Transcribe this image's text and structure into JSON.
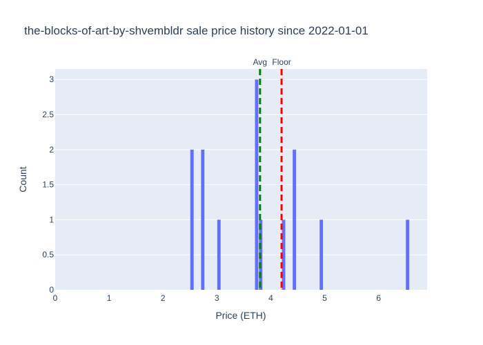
{
  "chart_data": {
    "type": "bar",
    "title": "the-blocks-of-art-by-shvembldr sale price history since 2022-01-01",
    "xlabel": "Price (ETH)",
    "ylabel": "Count",
    "xlim": [
      0,
      6.9
    ],
    "ylim": [
      0,
      3.15
    ],
    "grid": true,
    "bin_width": 0.075,
    "bar_color": "#636efa",
    "plot_bg": "#e5ecf6",
    "bins": [
      {
        "x0": 2.5,
        "x1": 2.575,
        "count": 2
      },
      {
        "x0": 2.7,
        "x1": 2.775,
        "count": 2
      },
      {
        "x0": 3.0,
        "x1": 3.075,
        "count": 1
      },
      {
        "x0": 3.7,
        "x1": 3.775,
        "count": 3
      },
      {
        "x0": 3.775,
        "x1": 3.85,
        "count": 1
      },
      {
        "x0": 4.2,
        "x1": 4.275,
        "count": 1
      },
      {
        "x0": 4.4,
        "x1": 4.475,
        "count": 2
      },
      {
        "x0": 4.9,
        "x1": 4.975,
        "count": 1
      },
      {
        "x0": 6.5,
        "x1": 6.575,
        "count": 1
      }
    ],
    "x_ticks": [
      {
        "value": 0,
        "label": "0"
      },
      {
        "value": 1,
        "label": "1"
      },
      {
        "value": 2,
        "label": "2"
      },
      {
        "value": 3,
        "label": "3"
      },
      {
        "value": 4,
        "label": "4"
      },
      {
        "value": 5,
        "label": "5"
      },
      {
        "value": 6,
        "label": "6"
      }
    ],
    "y_ticks": [
      {
        "value": 0,
        "label": "0"
      },
      {
        "value": 0.5,
        "label": "0.5"
      },
      {
        "value": 1,
        "label": "1"
      },
      {
        "value": 1.5,
        "label": "1.5"
      },
      {
        "value": 2,
        "label": "2"
      },
      {
        "value": 2.5,
        "label": "2.5"
      },
      {
        "value": 3,
        "label": "3"
      }
    ],
    "reference_lines": [
      {
        "name": "avg",
        "label": "Avg",
        "x": 3.8,
        "color": "#008000"
      },
      {
        "name": "floor",
        "label": "Floor",
        "x": 4.2,
        "color": "#ff0000"
      }
    ]
  }
}
